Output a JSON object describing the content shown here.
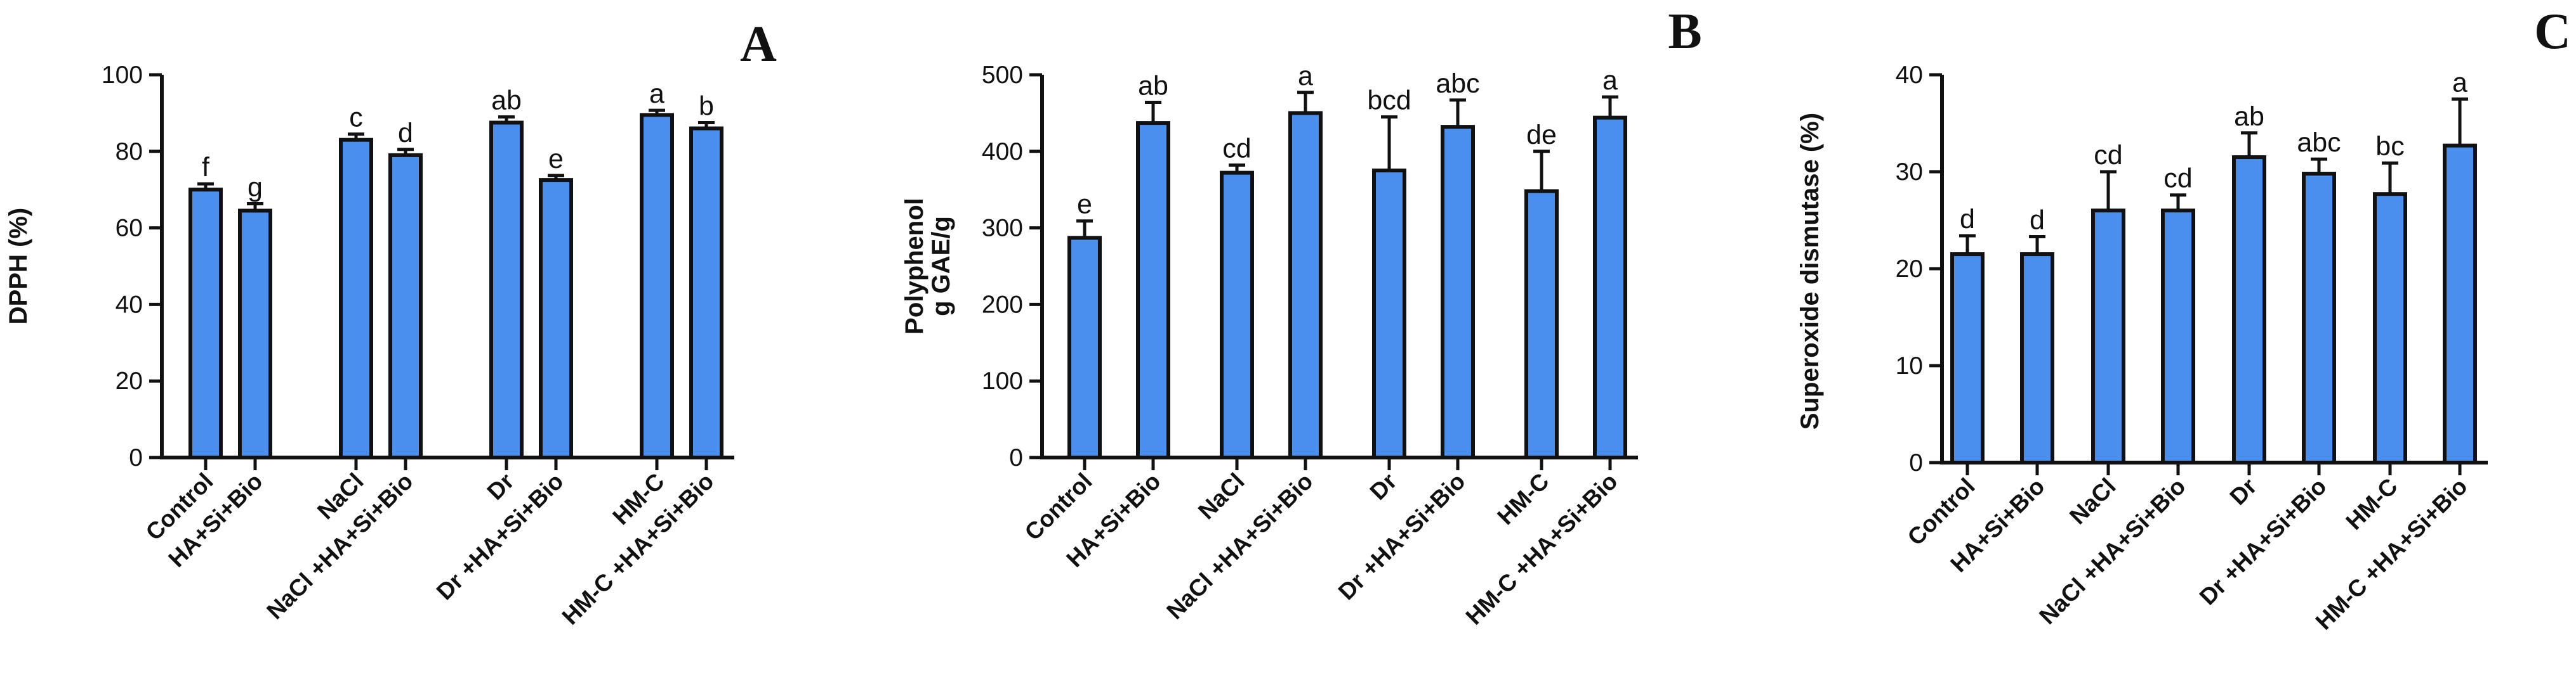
{
  "chart_data": [
    {
      "panel": "A",
      "type": "bar",
      "ylabel": "DPPH (%)",
      "ylim": [
        0,
        100
      ],
      "yticks": [
        0,
        20,
        40,
        60,
        80,
        100
      ],
      "bar_color": "#4A8FEE",
      "grid": false,
      "groups": [
        {
          "bars": [
            {
              "category": "Control",
              "value": 70,
              "error": 1.5,
              "letter": "f"
            },
            {
              "category": "HA+Si+Bio",
              "value": 64.5,
              "error": 1.8,
              "letter": "g"
            }
          ]
        },
        {
          "bars": [
            {
              "category": "NaCl",
              "value": 83,
              "error": 1.5,
              "letter": "c"
            },
            {
              "category": "NaCl +HA+Si+Bio",
              "value": 79,
              "error": 1.5,
              "letter": "d"
            }
          ]
        },
        {
          "bars": [
            {
              "category": "Dr",
              "value": 87.5,
              "error": 1.5,
              "letter": "ab"
            },
            {
              "category": "Dr +HA+Si+Bio",
              "value": 72.5,
              "error": 1.2,
              "letter": "e"
            }
          ]
        },
        {
          "bars": [
            {
              "category": "HM-C",
              "value": 89.5,
              "error": 1.2,
              "letter": "a"
            },
            {
              "category": "HM-C +HA+Si+Bio",
              "value": 86,
              "error": 1.5,
              "letter": "b"
            }
          ]
        }
      ]
    },
    {
      "panel": "B",
      "type": "bar",
      "ylabel_lines": [
        "Polyphenol",
        "g GAE/g"
      ],
      "ylim": [
        0,
        500
      ],
      "yticks": [
        0,
        100,
        200,
        300,
        400,
        500
      ],
      "bar_color": "#4A8FEE",
      "grid": false,
      "groups": [
        {
          "bars": [
            {
              "category": "Control",
              "value": 287,
              "error": 22,
              "letter": "e"
            },
            {
              "category": "HA+Si+Bio",
              "value": 437,
              "error": 27,
              "letter": "ab"
            }
          ]
        },
        {
          "bars": [
            {
              "category": "NaCl",
              "value": 372,
              "error": 10,
              "letter": "cd"
            },
            {
              "category": "NaCl +HA+Si+Bio",
              "value": 450,
              "error": 27,
              "letter": "a"
            }
          ]
        },
        {
          "bars": [
            {
              "category": "Dr",
              "value": 375,
              "error": 70,
              "letter": "bcd"
            },
            {
              "category": "Dr +HA+Si+Bio",
              "value": 432,
              "error": 35,
              "letter": "abc"
            }
          ]
        },
        {
          "bars": [
            {
              "category": "HM-C",
              "value": 348,
              "error": 52,
              "letter": "de"
            },
            {
              "category": "HM-C +HA+Si+Bio",
              "value": 444,
              "error": 27,
              "letter": "a"
            }
          ]
        }
      ]
    },
    {
      "panel": "C",
      "type": "bar",
      "ylabel": "Superoxide dismutase (%)",
      "ylim": [
        0,
        40
      ],
      "yticks": [
        0,
        10,
        20,
        30,
        40
      ],
      "bar_color": "#4A8FEE",
      "grid": false,
      "groups": [
        {
          "bars": [
            {
              "category": "Control",
              "value": 21.5,
              "error": 1.9,
              "letter": "d"
            },
            {
              "category": "HA+Si+Bio",
              "value": 21.5,
              "error": 1.8,
              "letter": "d"
            }
          ]
        },
        {
          "bars": [
            {
              "category": "NaCl",
              "value": 26,
              "error": 4,
              "letter": "cd"
            },
            {
              "category": "NaCl +HA+Si+Bio",
              "value": 26,
              "error": 1.6,
              "letter": "cd"
            }
          ]
        },
        {
          "bars": [
            {
              "category": "Dr",
              "value": 31.5,
              "error": 2.5,
              "letter": "ab"
            },
            {
              "category": "Dr +HA+Si+Bio",
              "value": 29.8,
              "error": 1.5,
              "letter": "abc"
            }
          ]
        },
        {
          "bars": [
            {
              "category": "HM-C",
              "value": 27.7,
              "error": 3.2,
              "letter": "bc"
            },
            {
              "category": "HM-C +HA+Si+Bio",
              "value": 32.7,
              "error": 4.8,
              "letter": "a"
            }
          ]
        }
      ]
    }
  ]
}
